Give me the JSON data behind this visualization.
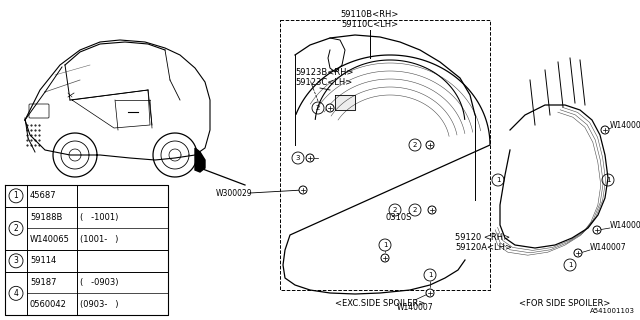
{
  "background_color": "#ffffff",
  "line_color": "#000000",
  "text_color": "#000000",
  "diagram_code": "A541001103",
  "caption_exc": "<EXC.SIDE SPOILER>",
  "caption_for": "<FOR SIDE SPOILER>",
  "label_59110B": "59110B<RH>",
  "label_59110C": "59110C<LH>",
  "label_59123B": "59123B<RH>",
  "label_59123C": "59123C<LH>",
  "label_W300029": "W300029",
  "label_0310S": "0310S",
  "label_59120": "59120 <RH>",
  "label_59120A": "59120A<LH>",
  "label_W140007": "W140007",
  "legend_rows": [
    {
      "num": "1",
      "sub": [
        [
          "45687",
          ""
        ]
      ]
    },
    {
      "num": "2",
      "sub": [
        [
          "59188B",
          "(   -1001)"
        ],
        [
          "W140065",
          "(1001-   )"
        ]
      ]
    },
    {
      "num": "3",
      "sub": [
        [
          "59114",
          ""
        ]
      ]
    },
    {
      "num": "4",
      "sub": [
        [
          "59187",
          "(   -0903)"
        ],
        [
          "0560042",
          "(0903-   )"
        ]
      ]
    }
  ]
}
